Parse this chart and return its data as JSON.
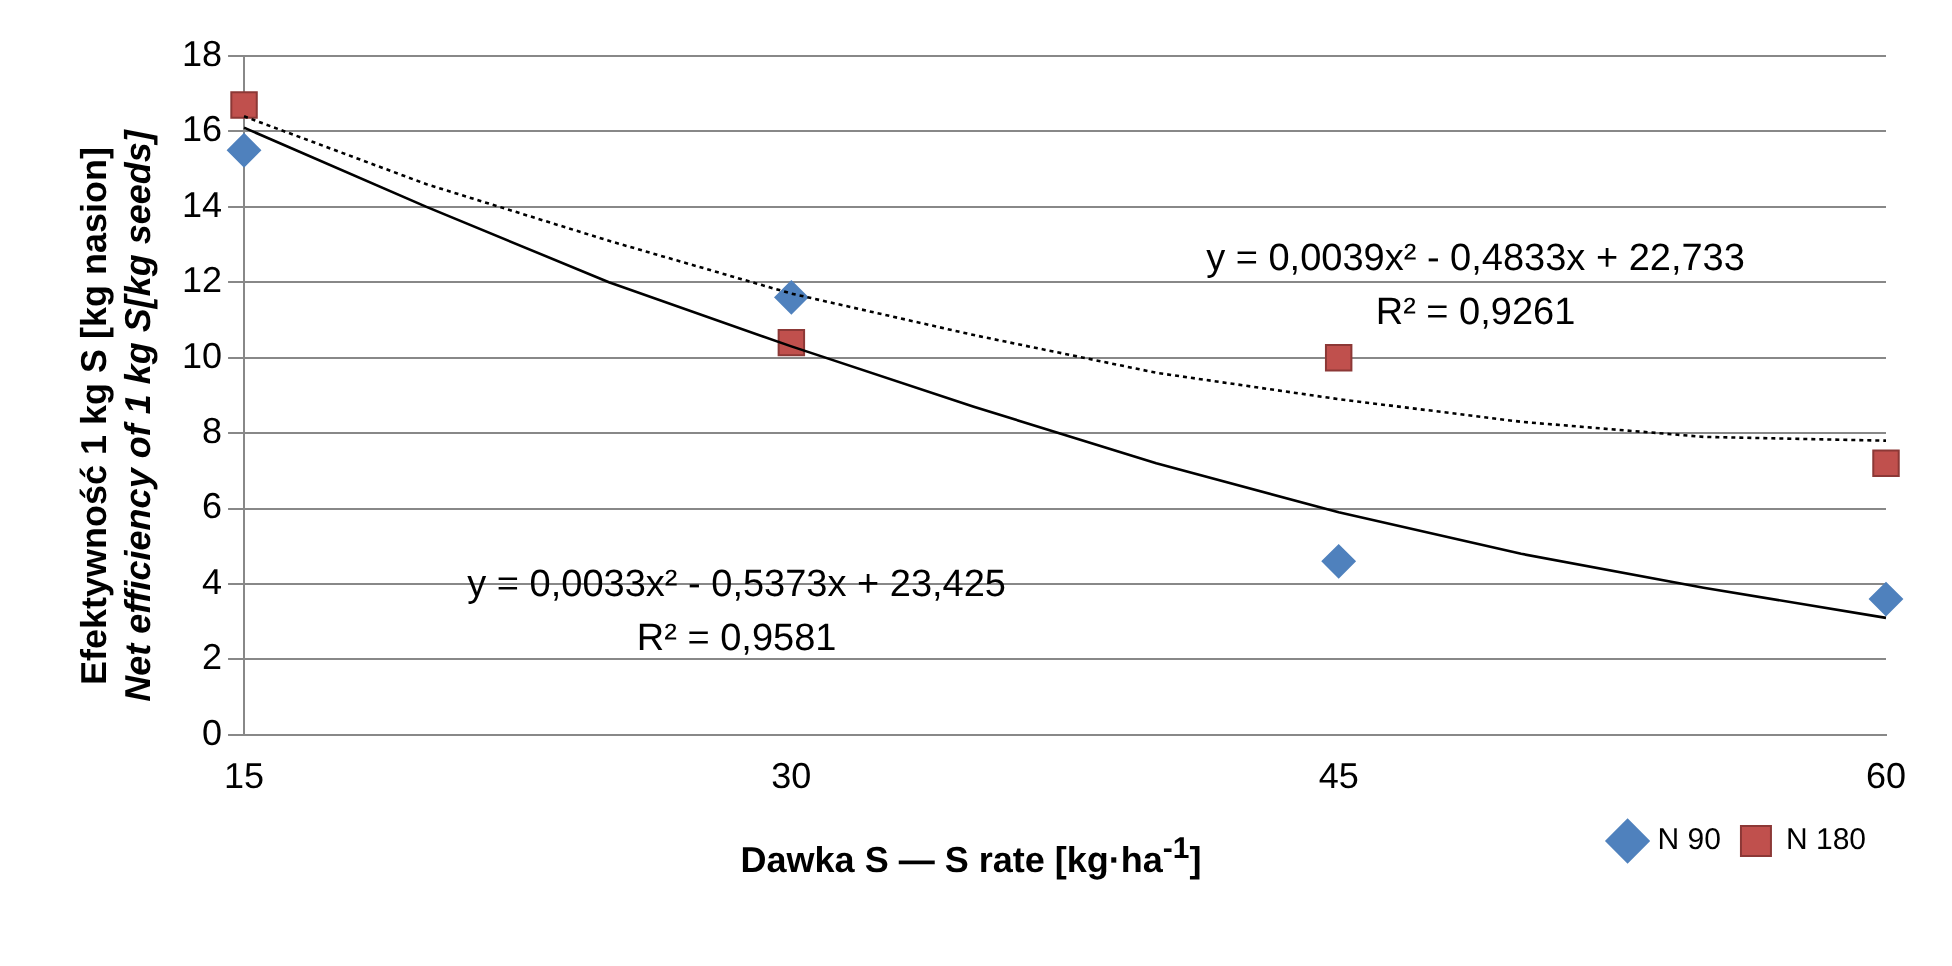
{
  "chart_data": {
    "type": "scatter",
    "xlabel": "Dawka S — S rate [kg·ha$^{-1}$]",
    "ylabel": "Efektywność 1 kg S [kg nasion]\nNet efficiency of 1 kg S[kg seeds]",
    "x": [
      15,
      30,
      45,
      60
    ],
    "series": [
      {
        "name": "N 90",
        "color": "#4f81bd",
        "marker": "diamond",
        "values": [
          15.5,
          11.6,
          4.6,
          3.6
        ]
      },
      {
        "name": "N 180",
        "color": "#c0504d",
        "marker": "square",
        "values": [
          16.7,
          10.4,
          10.0,
          7.2
        ]
      },
      {
        "type": "line",
        "color": "#000000",
        "marker": "none",
        "line_style": "solid",
        "x": [
          15,
          20,
          25,
          30,
          35,
          40,
          45,
          50,
          55,
          60
        ],
        "values": [
          16.1,
          14.0,
          12.0,
          10.3,
          8.7,
          7.2,
          5.9,
          4.8,
          3.9,
          3.1
        ]
      },
      {
        "type": "line",
        "color": "#000000",
        "marker": "none",
        "line_style": "dotted",
        "x": [
          15,
          20,
          25,
          30,
          35,
          40,
          45,
          50,
          55,
          60
        ],
        "values": [
          16.4,
          14.6,
          13.1,
          11.7,
          10.6,
          9.6,
          8.9,
          8.3,
          7.9,
          7.8
        ]
      }
    ],
    "annotations": [
      "y = 0,0039x² - 0,4833x + 22,733",
      "R² = 0,9261",
      "y = 0,0033x² - 0,5373x + 23,425",
      "R² = 0,9581"
    ],
    "xlim": [
      15,
      60
    ],
    "xticks": [
      15,
      30,
      45,
      60
    ],
    "ylim": [
      0,
      18
    ],
    "yticks": [
      0,
      2,
      4,
      6,
      8,
      10,
      12,
      14,
      16,
      18
    ],
    "grid": "y",
    "legend": "bottom right"
  }
}
